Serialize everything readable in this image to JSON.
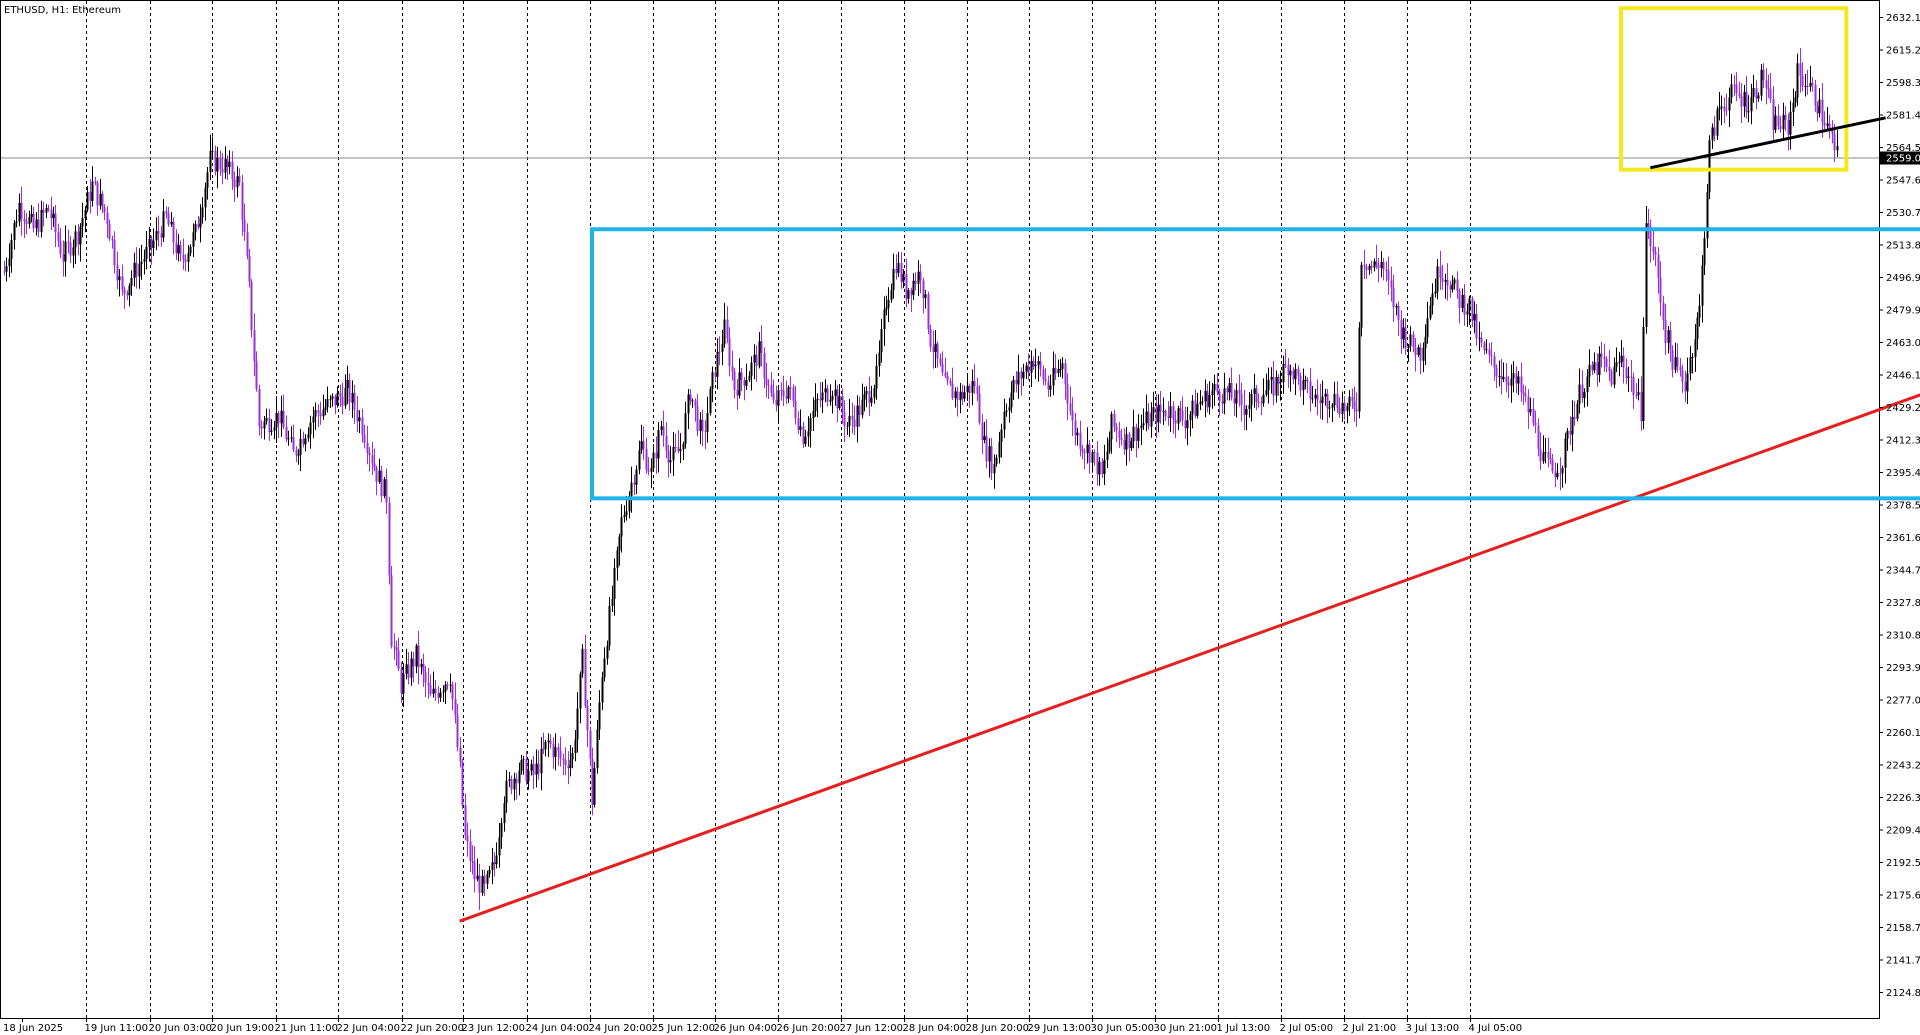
{
  "window": {
    "title": "ETHUSD, H1:  Ethereum"
  },
  "colors": {
    "bull": "#000000",
    "bear": "#9b30d9",
    "grid": "#000000",
    "trend": "#e61e1e",
    "range": "#1eb4eb",
    "box": "#f2ea1e",
    "neckline": "#000000"
  },
  "chart_data": {
    "type": "candlestick",
    "symbol": "ETHUSD",
    "timeframe": "H1",
    "subtitle": "Ethereum",
    "grid": "vertical-dashed",
    "ylim": [
      2110,
      2640
    ],
    "y_ticks": [
      "2632.18",
      "2615.27",
      "2598.36",
      "2581.45",
      "2564.54",
      "2547.63",
      "2530.72",
      "2513.81",
      "2496.90",
      "2479.99",
      "2463.08",
      "2446.17",
      "2429.26",
      "2412.35",
      "2395.44",
      "2378.53",
      "2361.62",
      "2344.71",
      "2327.80",
      "2310.89",
      "2293.98",
      "2277.07",
      "2260.16",
      "2243.25",
      "2226.34",
      "2209.43",
      "2192.52",
      "2175.61",
      "2158.70",
      "2141.79",
      "2124.88"
    ],
    "x_ticks": [
      "18 Jun 2025",
      "19 Jun 11:00",
      "20 Jun 03:00",
      "20 Jun 19:00",
      "21 Jun 11:00",
      "22 Jun 04:00",
      "22 Jun 20:00",
      "23 Jun 12:00",
      "24 Jun 04:00",
      "24 Jun 20:00",
      "25 Jun 12:00",
      "26 Jun 04:00",
      "26 Jun 20:00",
      "27 Jun 12:00",
      "28 Jun 04:00",
      "28 Jun 20:00",
      "29 Jun 13:00",
      "30 Jun 05:00",
      "30 Jun 21:00",
      "1 Jul 13:00",
      "2 Jul 05:00",
      "2 Jul 21:00",
      "3 Jul 13:00",
      "4 Jul 05:00"
    ],
    "current_price": "2559.07",
    "close_path": [
      [
        0,
        2500
      ],
      [
        6,
        2535
      ],
      [
        12,
        2522
      ],
      [
        18,
        2533
      ],
      [
        24,
        2508
      ],
      [
        30,
        2520
      ],
      [
        36,
        2545
      ],
      [
        42,
        2528
      ],
      [
        48,
        2488
      ],
      [
        54,
        2502
      ],
      [
        60,
        2513
      ],
      [
        66,
        2528
      ],
      [
        72,
        2505
      ],
      [
        78,
        2520
      ],
      [
        84,
        2558
      ],
      [
        90,
        2555
      ],
      [
        96,
        2545
      ],
      [
        100,
        2490
      ],
      [
        104,
        2420
      ],
      [
        112,
        2425
      ],
      [
        118,
        2405
      ],
      [
        126,
        2425
      ],
      [
        134,
        2432
      ],
      [
        140,
        2438
      ],
      [
        146,
        2420
      ],
      [
        152,
        2395
      ],
      [
        156,
        2383
      ],
      [
        158,
        2310
      ],
      [
        162,
        2285
      ],
      [
        168,
        2300
      ],
      [
        174,
        2278
      ],
      [
        182,
        2290
      ],
      [
        186,
        2240
      ],
      [
        188,
        2205
      ],
      [
        192,
        2185
      ],
      [
        196,
        2178
      ],
      [
        200,
        2192
      ],
      [
        204,
        2228
      ],
      [
        210,
        2242
      ],
      [
        216,
        2238
      ],
      [
        222,
        2255
      ],
      [
        228,
        2245
      ],
      [
        232,
        2248
      ],
      [
        236,
        2298
      ],
      [
        240,
        2225
      ],
      [
        244,
        2292
      ],
      [
        248,
        2330
      ],
      [
        252,
        2370
      ],
      [
        256,
        2390
      ],
      [
        260,
        2410
      ],
      [
        264,
        2395
      ],
      [
        268,
        2420
      ],
      [
        272,
        2402
      ],
      [
        276,
        2408
      ],
      [
        280,
        2438
      ],
      [
        285,
        2412
      ],
      [
        290,
        2450
      ],
      [
        294,
        2470
      ],
      [
        298,
        2440
      ],
      [
        304,
        2448
      ],
      [
        308,
        2458
      ],
      [
        314,
        2430
      ],
      [
        320,
        2440
      ],
      [
        326,
        2415
      ],
      [
        332,
        2432
      ],
      [
        338,
        2440
      ],
      [
        344,
        2420
      ],
      [
        350,
        2430
      ],
      [
        356,
        2445
      ],
      [
        360,
        2485
      ],
      [
        364,
        2505
      ],
      [
        368,
        2490
      ],
      [
        374,
        2500
      ],
      [
        378,
        2465
      ],
      [
        384,
        2440
      ],
      [
        390,
        2435
      ],
      [
        396,
        2442
      ],
      [
        400,
        2410
      ],
      [
        404,
        2398
      ],
      [
        408,
        2428
      ],
      [
        412,
        2440
      ],
      [
        416,
        2448
      ],
      [
        420,
        2455
      ],
      [
        426,
        2440
      ],
      [
        432,
        2452
      ],
      [
        436,
        2420
      ],
      [
        440,
        2410
      ],
      [
        444,
        2405
      ],
      [
        448,
        2393
      ],
      [
        452,
        2420
      ],
      [
        458,
        2412
      ],
      [
        464,
        2420
      ],
      [
        470,
        2426
      ],
      [
        476,
        2428
      ],
      [
        482,
        2423
      ],
      [
        488,
        2432
      ],
      [
        494,
        2438
      ],
      [
        500,
        2436
      ],
      [
        506,
        2430
      ],
      [
        512,
        2436
      ],
      [
        518,
        2440
      ],
      [
        524,
        2452
      ],
      [
        530,
        2440
      ],
      [
        536,
        2433
      ],
      [
        542,
        2435
      ],
      [
        548,
        2428
      ],
      [
        552,
        2432
      ],
      [
        554,
        2508
      ],
      [
        558,
        2502
      ],
      [
        562,
        2505
      ],
      [
        566,
        2488
      ],
      [
        570,
        2470
      ],
      [
        574,
        2462
      ],
      [
        578,
        2458
      ],
      [
        582,
        2485
      ],
      [
        586,
        2502
      ],
      [
        590,
        2495
      ],
      [
        594,
        2485
      ],
      [
        598,
        2482
      ],
      [
        602,
        2462
      ],
      [
        608,
        2450
      ],
      [
        614,
        2445
      ],
      [
        618,
        2440
      ],
      [
        624,
        2422
      ],
      [
        628,
        2402
      ],
      [
        632,
        2396
      ],
      [
        636,
        2402
      ],
      [
        640,
        2425
      ],
      [
        644,
        2440
      ],
      [
        648,
        2448
      ],
      [
        652,
        2453
      ],
      [
        656,
        2445
      ],
      [
        660,
        2455
      ],
      [
        664,
        2443
      ],
      [
        668,
        2428
      ],
      [
        670,
        2525
      ],
      [
        674,
        2505
      ],
      [
        678,
        2468
      ],
      [
        682,
        2450
      ],
      [
        686,
        2442
      ],
      [
        692,
        2480
      ],
      [
        696,
        2565
      ],
      [
        700,
        2585
      ],
      [
        706,
        2593
      ],
      [
        712,
        2588
      ],
      [
        718,
        2602
      ],
      [
        722,
        2578
      ],
      [
        728,
        2575
      ],
      [
        732,
        2603
      ],
      [
        736,
        2598
      ],
      [
        740,
        2588
      ],
      [
        744,
        2575
      ],
      [
        746,
        2568
      ],
      [
        748,
        2560
      ]
    ],
    "annotations": {
      "trend_line": {
        "from": [
          186,
          2162
        ],
        "to": [
          948,
          2512
        ],
        "color": "red"
      },
      "range_box": {
        "x": [
          240,
          918
        ],
        "y": [
          2382,
          2522
        ],
        "color": "light-blue"
      },
      "top_box": {
        "x": [
          660,
          752
        ],
        "y": [
          2553,
          2637
        ],
        "color": "yellow"
      },
      "neckline": {
        "from": [
          672,
          2554
        ],
        "to": [
          768,
          2580
        ],
        "color": "black"
      }
    }
  }
}
